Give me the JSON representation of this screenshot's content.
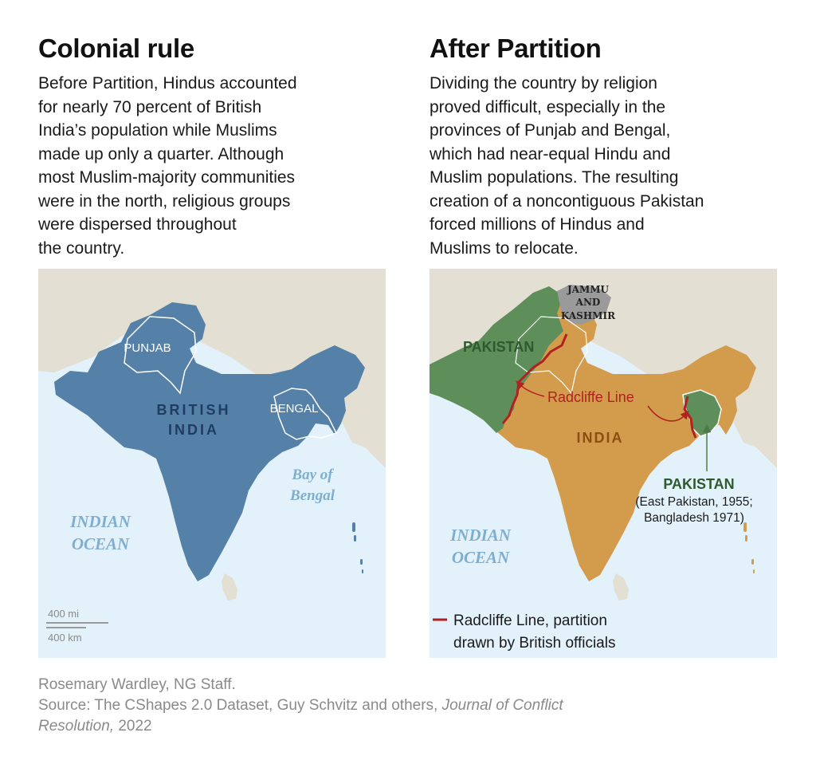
{
  "left_panel": {
    "title": "Colonial rule",
    "body_lines": [
      "Before Partition, Hindus accounted",
      "for nearly 70 percent of British",
      "India’s population while Muslims",
      "made up only a quarter. Although",
      "most Muslim-majority communities",
      "were in the north, religious groups",
      "were dispersed throughout",
      "the country."
    ],
    "map": {
      "region_labels": {
        "punjab": "PUNJAB",
        "bengal": "BENGAL",
        "british_india_line1": "BRITISH",
        "british_india_line2": "INDIA"
      },
      "water_labels": {
        "bay_line1": "Bay of",
        "bay_line2": "Bengal",
        "ocean_line1": "INDIAN",
        "ocean_line2": "OCEAN"
      },
      "scale": {
        "miles": "400 mi",
        "km": "400 km"
      }
    }
  },
  "right_panel": {
    "title": "After Partition",
    "body_lines": [
      "Dividing the country by religion",
      "proved difficult, especially in the",
      "provinces of Punjab and Bengal,",
      "which had near-equal Hindu and",
      "Muslim populations. The resulting",
      "creation of a noncontiguous Pakistan",
      "forced millions of Hindus and",
      "Muslims to relocate."
    ],
    "map": {
      "region_labels": {
        "kashmir_line1": "JAMMU",
        "kashmir_line2": "AND",
        "kashmir_line3": "KASHMIR",
        "pakistan_west": "PAKISTAN",
        "india": "INDIA",
        "pakistan_east": "PAKISTAN",
        "pakistan_east_note1": "(East Pakistan, 1955;",
        "pakistan_east_note2": "Bangladesh 1971)"
      },
      "line_label": "Radcliffe Line",
      "water_labels": {
        "ocean_line1": "INDIAN",
        "ocean_line2": "OCEAN"
      },
      "legend": {
        "line1": "Radcliffe Line, partition",
        "line2": "drawn by British officials"
      }
    }
  },
  "credits": {
    "line1": "Rosemary Wardley, NG Staff.",
    "line2_prefix": "Source: The CShapes 2.0 Dataset, Guy Schvitz and others, ",
    "line2_journal": "Journal of Conflict",
    "line3_journal": "Resolution,",
    "line3_year": " 2022"
  },
  "colors": {
    "sea": "#e3f1fb",
    "land_other": "#e3dfd3",
    "british_india": "#5581a8",
    "india_after": "#d39b4c",
    "pakistan": "#5e8e5a",
    "kashmir": "#9a9a9a",
    "radcliffe_line": "#b02222",
    "water_label": "#7eaed0",
    "credits_gray": "#8a8a8a"
  }
}
